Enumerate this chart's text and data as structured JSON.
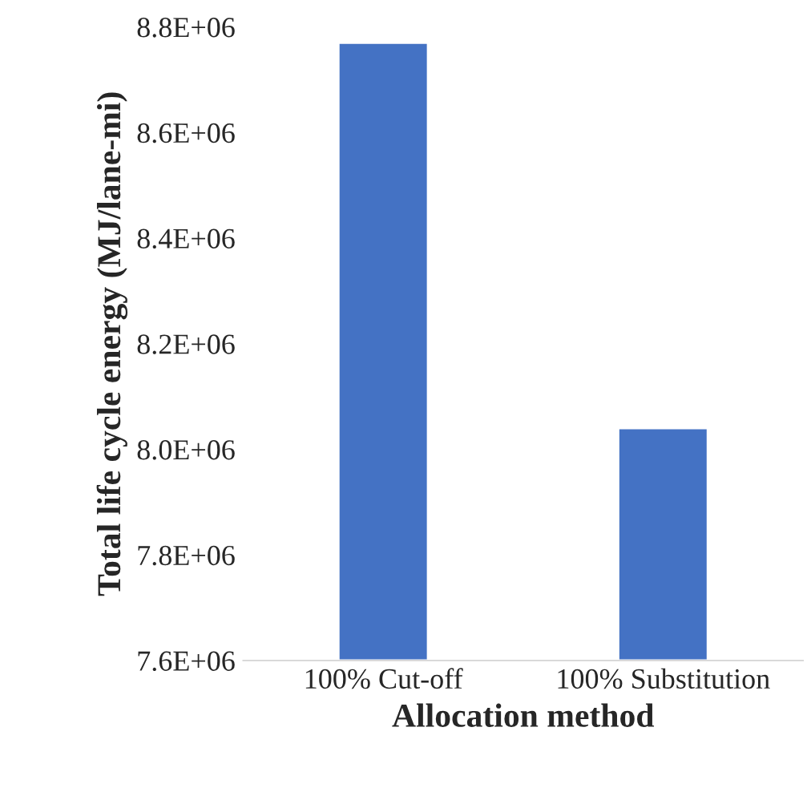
{
  "chart_data": {
    "type": "bar",
    "xlabel": "Allocation method",
    "ylabel": "Total life cycle energy (MJ/lane-mi)",
    "categories": [
      "100% Cut-off",
      "100% Substitution"
    ],
    "values": [
      8770000,
      8040000
    ],
    "color": "#4472c4",
    "ylim": [
      7600000,
      8800000
    ],
    "yticks": [
      {
        "value": 7600000,
        "label": "7.6E+06"
      },
      {
        "value": 7800000,
        "label": "7.8E+06"
      },
      {
        "value": 8000000,
        "label": "8.0E+06"
      },
      {
        "value": 8200000,
        "label": "8.2E+06"
      },
      {
        "value": 8400000,
        "label": "8.4E+06"
      },
      {
        "value": 8600000,
        "label": "8.6E+06"
      },
      {
        "value": 8800000,
        "label": "8.8E+06"
      }
    ],
    "grid": false,
    "legend": false
  }
}
